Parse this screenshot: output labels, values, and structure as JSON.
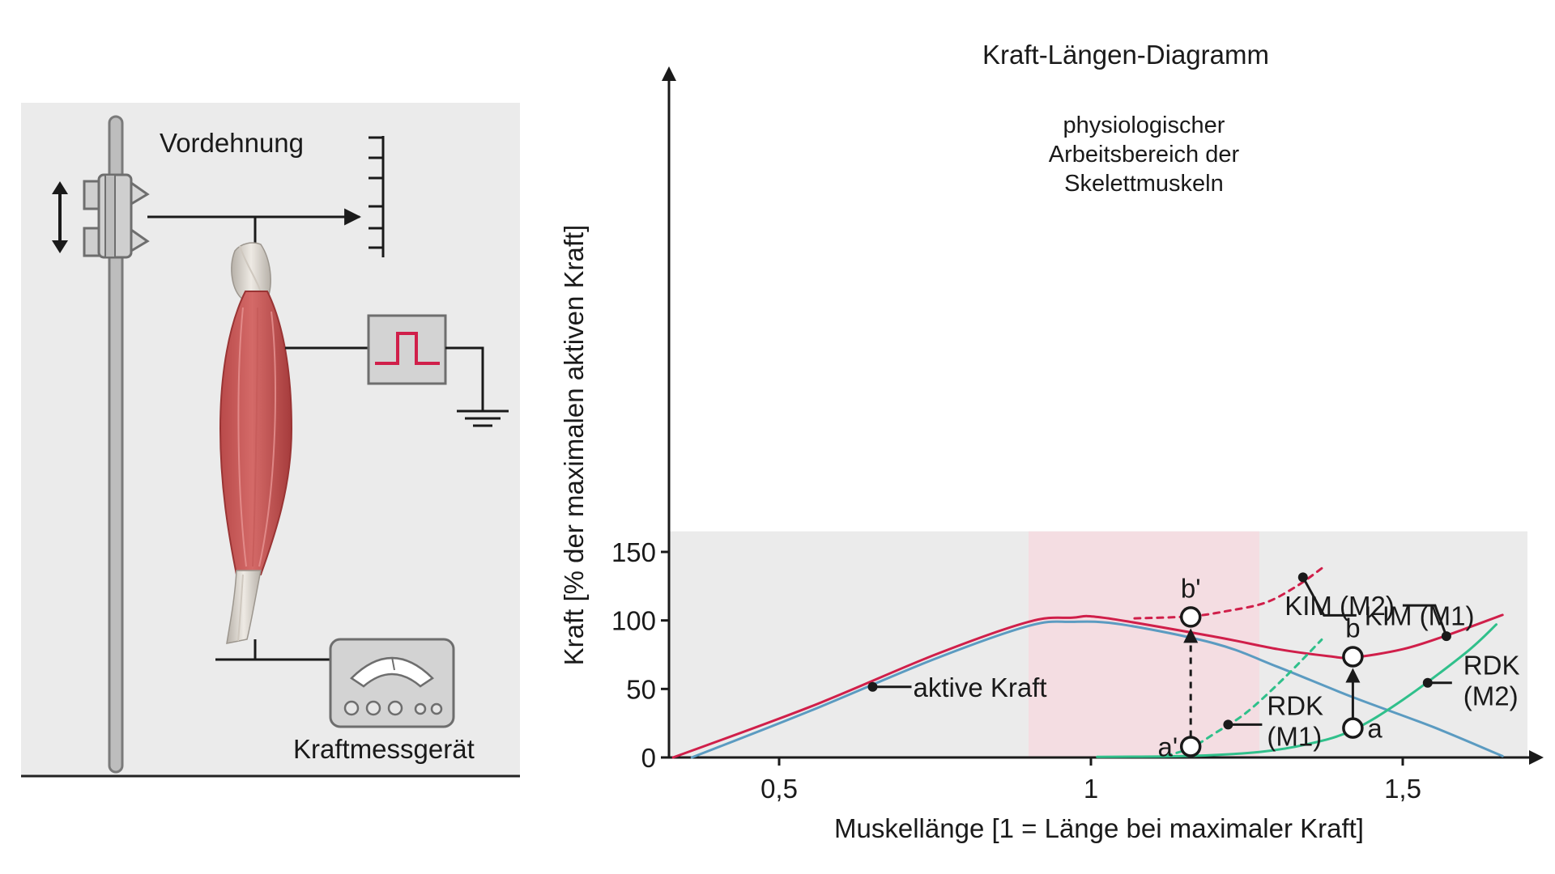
{
  "setup": {
    "prestretch_label": "Vordehnung",
    "force_meter_label": "Kraftmessgerät"
  },
  "chart_data": {
    "type": "line",
    "title": "Kraft-Längen-Diagramm",
    "xlabel": "Muskellänge [1 = Länge bei maximaler Kraft]",
    "ylabel": "Kraft [% der maximalen aktiven Kraft]",
    "xlim": [
      0.33,
      1.75
    ],
    "ylim": [
      0,
      165
    ],
    "x_ticks": [
      {
        "value": 0.5,
        "label": "0,5"
      },
      {
        "value": 1.0,
        "label": "1"
      },
      {
        "value": 1.5,
        "label": "1,5"
      }
    ],
    "y_ticks": [
      {
        "value": 0,
        "label": "0"
      },
      {
        "value": 50,
        "label": "50"
      },
      {
        "value": 100,
        "label": "100"
      },
      {
        "value": 150,
        "label": "150"
      }
    ],
    "shaded_region": {
      "x_range": [
        0.9,
        1.27
      ],
      "label_lines": [
        "physiologischer",
        "Arbeitsbereich der",
        "Skelettmuskeln"
      ]
    },
    "series": [
      {
        "key": "active",
        "color": "#5b9bc1",
        "dashed": false,
        "x": [
          0.36,
          0.55,
          0.75,
          0.9,
          0.97,
          1.05,
          1.2,
          1.3,
          1.42,
          1.55,
          1.66
        ],
        "y": [
          0,
          34,
          72,
          96,
          99,
          97,
          83,
          66,
          44,
          22,
          1
        ]
      },
      {
        "key": "kim_m2",
        "color": "#d01f4a",
        "dashed": false,
        "x": [
          0.33,
          0.55,
          0.75,
          0.9,
          0.97,
          1.02,
          1.2,
          1.3,
          1.38,
          1.42,
          1.5,
          1.57,
          1.66
        ],
        "y": [
          0,
          37,
          75,
          99,
          102,
          102,
          88,
          79,
          74,
          73,
          79,
          89,
          104
        ]
      },
      {
        "key": "rdk_m2",
        "color": "#30c08b",
        "dashed": false,
        "x": [
          1.01,
          1.15,
          1.27,
          1.35,
          1.42,
          1.5,
          1.6,
          1.65
        ],
        "y": [
          0.5,
          1,
          4,
          10,
          20,
          42,
          76,
          97
        ]
      },
      {
        "key": "kim_m1",
        "color": "#d01f4a",
        "dashed": true,
        "x": [
          1.07,
          1.16,
          1.22,
          1.28,
          1.33,
          1.37
        ],
        "y": [
          101.5,
          103,
          107,
          113,
          125,
          138
        ]
      },
      {
        "key": "rdk_m1",
        "color": "#30c08b",
        "dashed": true,
        "x": [
          1.12,
          1.16,
          1.2,
          1.25,
          1.31,
          1.37
        ],
        "y": [
          1,
          7,
          18,
          33,
          58,
          86
        ]
      }
    ],
    "labels": [
      {
        "key": "active_label",
        "text": "aktive Kraft",
        "dot": [
          0.65,
          51.5
        ]
      },
      {
        "key": "kim_m1_label",
        "text": "KIM (M1)",
        "dot": [
          1.34,
          131.5
        ]
      },
      {
        "key": "kim_m2_label",
        "text": "KIM (M2)",
        "dot": [
          1.57,
          88.5
        ]
      },
      {
        "key": "rdk_m1_label",
        "lines": [
          "RDK",
          "(M1)"
        ],
        "dot": [
          1.22,
          24
        ]
      },
      {
        "key": "rdk_m2_label",
        "lines": [
          "RDK",
          "(M2)"
        ],
        "dot": [
          1.54,
          54.5
        ]
      }
    ],
    "points": [
      {
        "label": "a",
        "x": 1.42,
        "y": 21.5
      },
      {
        "label": "b",
        "x": 1.42,
        "y": 73.5
      },
      {
        "label": "a'",
        "x": 1.16,
        "y": 8
      },
      {
        "label": "b'",
        "x": 1.16,
        "y": 102.5
      }
    ]
  }
}
